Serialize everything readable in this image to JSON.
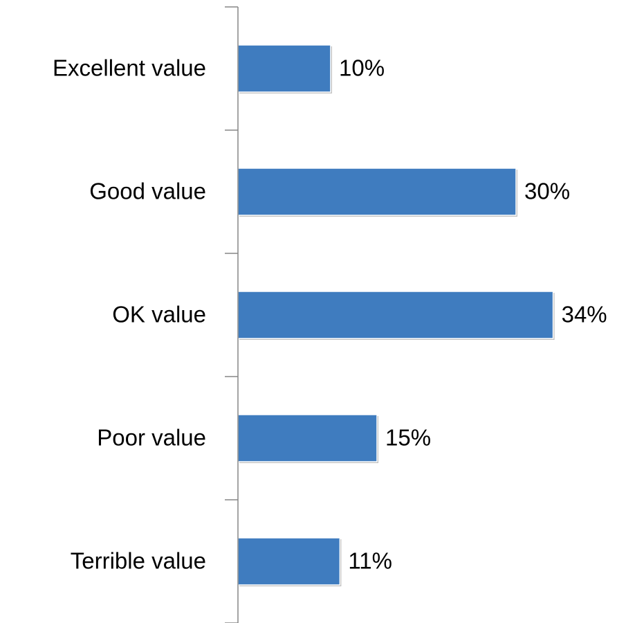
{
  "chart_data": {
    "type": "bar",
    "orientation": "horizontal",
    "categories": [
      "Excellent value",
      "Good value",
      "OK value",
      "Poor value",
      "Terrible value"
    ],
    "values": [
      10,
      30,
      34,
      15,
      11
    ],
    "value_labels": [
      "10%",
      "30%",
      "34%",
      "15%",
      "11%"
    ],
    "color": "#3f7cbf",
    "xlim": [
      0,
      40
    ]
  }
}
